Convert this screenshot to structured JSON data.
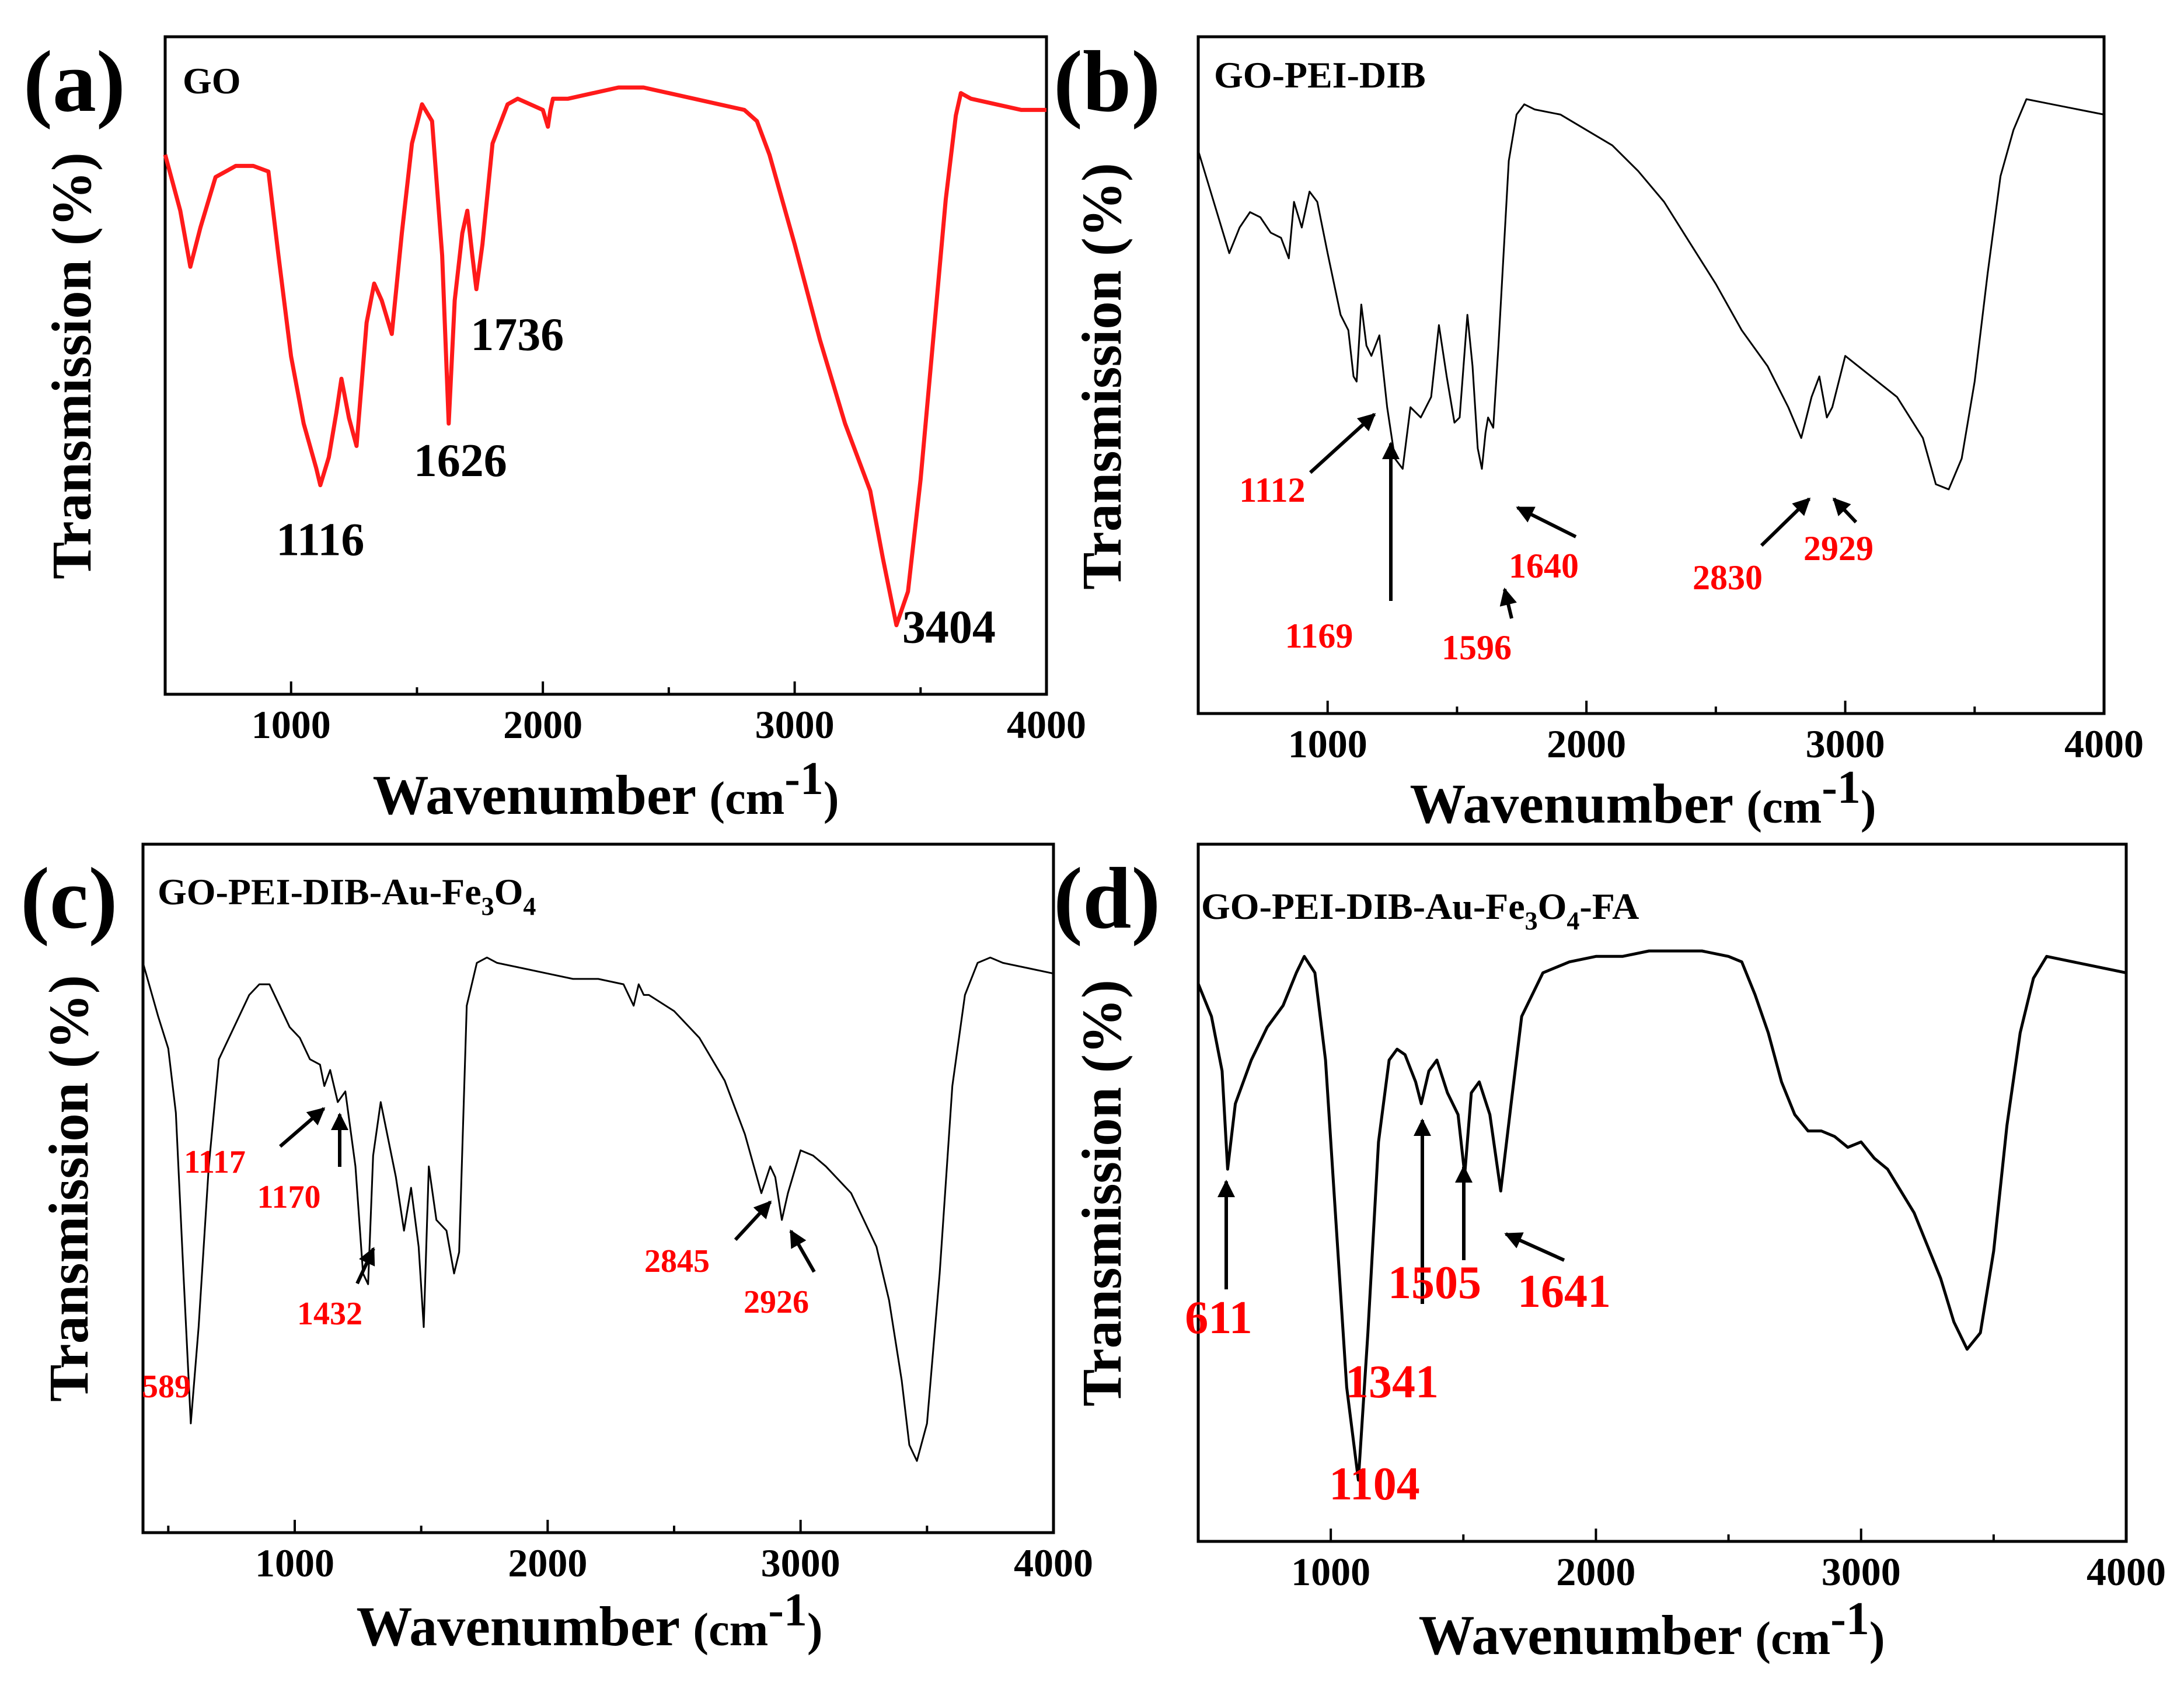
{
  "chart_data": [
    {
      "type": "line",
      "panel_label": "(a)",
      "title": "GO",
      "xlabel": "Wavenumber",
      "xunit": "(cm",
      "xunit_sup": "-1",
      "xunit_close": ")",
      "ylabel": "Transmission (%)",
      "xlim": [
        500,
        4000
      ],
      "ylim": [
        0,
        100
      ],
      "xticks": [
        1000,
        2000,
        3000,
        4000
      ],
      "line_color": "#ff1a1a",
      "line_width": 7,
      "annotation_color": "#000000",
      "annotation_size": 80,
      "series": [
        {
          "name": "GO",
          "x": [
            500,
            560,
            600,
            640,
            700,
            780,
            850,
            910,
            950,
            1000,
            1050,
            1100,
            1116,
            1150,
            1180,
            1200,
            1230,
            1260,
            1300,
            1330,
            1360,
            1400,
            1440,
            1480,
            1520,
            1560,
            1600,
            1626,
            1650,
            1680,
            1700,
            1720,
            1736,
            1760,
            1800,
            1860,
            1900,
            1950,
            2000,
            2020,
            2030,
            2040,
            2100,
            2200,
            2300,
            2400,
            2500,
            2600,
            2700,
            2800,
            2850,
            2900,
            3000,
            3100,
            3200,
            3300,
            3350,
            3404,
            3450,
            3500,
            3550,
            3600,
            3640,
            3660,
            3700,
            3800,
            3900,
            4000
          ],
          "y": [
            88,
            78,
            68,
            75,
            84,
            86,
            86,
            85,
            70,
            52,
            40,
            32,
            29,
            34,
            42,
            48,
            41,
            36,
            58,
            65,
            62,
            56,
            74,
            90,
            97,
            94,
            70,
            40,
            62,
            74,
            78,
            70,
            64,
            72,
            90,
            97,
            98,
            97,
            96,
            93,
            96,
            98,
            98,
            99,
            100,
            100,
            99,
            98,
            97,
            96,
            94,
            88,
            72,
            55,
            40,
            28,
            16,
            4,
            10,
            30,
            55,
            80,
            95,
            99,
            98,
            97,
            96,
            96
          ]
        }
      ],
      "annotations": [
        {
          "text": "1116",
          "x": 1116
        },
        {
          "text": "1626",
          "x": 1626
        },
        {
          "text": "1736",
          "x": 1736
        },
        {
          "text": "3404",
          "x": 3404
        }
      ]
    },
    {
      "type": "line",
      "panel_label": "(b)",
      "title": "GO-PEI-DIB",
      "xlabel": "Wavenumber",
      "xunit": "(cm",
      "xunit_sup": "-1",
      "xunit_close": ")",
      "ylabel": "Transmission (%)",
      "xlim": [
        500,
        4000
      ],
      "ylim": [
        0,
        100
      ],
      "xticks": [
        1000,
        2000,
        3000,
        4000
      ],
      "line_color": "#000000",
      "line_width": 3,
      "annotation_color": "#ff0000",
      "annotation_size": 60,
      "series": [
        {
          "name": "GO-PEI-DIB",
          "x": [
            500,
            560,
            620,
            660,
            700,
            740,
            780,
            820,
            850,
            870,
            900,
            930,
            960,
            1000,
            1050,
            1080,
            1100,
            1112,
            1130,
            1150,
            1169,
            1200,
            1230,
            1260,
            1290,
            1320,
            1360,
            1400,
            1430,
            1460,
            1490,
            1510,
            1540,
            1560,
            1580,
            1596,
            1610,
            1620,
            1640,
            1660,
            1700,
            1730,
            1760,
            1800,
            1900,
            2000,
            2100,
            2200,
            2300,
            2400,
            2500,
            2600,
            2700,
            2780,
            2830,
            2870,
            2900,
            2929,
            2950,
            3000,
            3050,
            3100,
            3200,
            3300,
            3350,
            3400,
            3450,
            3500,
            3550,
            3600,
            3650,
            3700,
            3800,
            3900,
            4000
          ],
          "y": [
            90,
            80,
            70,
            75,
            78,
            77,
            74,
            73,
            69,
            80,
            75,
            82,
            80,
            70,
            58,
            55,
            46,
            45,
            60,
            52,
            50,
            54,
            40,
            30,
            28,
            40,
            38,
            42,
            56,
            46,
            37,
            38,
            58,
            48,
            32,
            28,
            35,
            38,
            36,
            52,
            88,
            97,
            99,
            98,
            97,
            94,
            91,
            86,
            80,
            72,
            64,
            55,
            48,
            40,
            34,
            42,
            46,
            38,
            40,
            50,
            48,
            46,
            42,
            34,
            25,
            24,
            30,
            45,
            66,
            85,
            94,
            100,
            99,
            98,
            97
          ]
        }
      ],
      "annotations": [
        {
          "text": "1112",
          "x": 1112
        },
        {
          "text": "1169",
          "x": 1169
        },
        {
          "text": "1596",
          "x": 1596
        },
        {
          "text": "1640",
          "x": 1640
        },
        {
          "text": "2830",
          "x": 2830
        },
        {
          "text": "2929",
          "x": 2929
        }
      ]
    },
    {
      "type": "line",
      "panel_label": "(c)",
      "title": "GO-PEI-DIB-Au-Fe",
      "title_sub1": "3",
      "title_mid": "O",
      "title_sub2": "4",
      "xlabel": "Wavenumber",
      "xunit": "(cm",
      "xunit_sup": "-1",
      "xunit_close": ")",
      "ylabel": "Transmission (%)",
      "xlim": [
        400,
        4000
      ],
      "ylim": [
        0,
        100
      ],
      "xticks": [
        1000,
        2000,
        3000,
        4000
      ],
      "line_color": "#000000",
      "line_width": 3,
      "annotation_color": "#ff0000",
      "annotation_size": 56,
      "series": [
        {
          "name": "GO-PEI-DIB-Au-Fe3O4",
          "x": [
            400,
            460,
            500,
            530,
            560,
            589,
            620,
            660,
            700,
            760,
            820,
            860,
            900,
            940,
            980,
            1020,
            1060,
            1100,
            1117,
            1140,
            1170,
            1200,
            1240,
            1270,
            1290,
            1310,
            1340,
            1370,
            1400,
            1432,
            1460,
            1490,
            1510,
            1530,
            1560,
            1600,
            1630,
            1650,
            1680,
            1720,
            1760,
            1800,
            1900,
            2000,
            2100,
            2200,
            2300,
            2340,
            2360,
            2380,
            2400,
            2500,
            2600,
            2700,
            2780,
            2845,
            2880,
            2900,
            2926,
            2950,
            3000,
            3050,
            3100,
            3200,
            3300,
            3350,
            3400,
            3430,
            3460,
            3500,
            3550,
            3600,
            3650,
            3700,
            3750,
            3800,
            3900,
            4000
          ],
          "y": [
            98,
            88,
            82,
            70,
            40,
            12,
            30,
            60,
            80,
            86,
            92,
            94,
            94,
            90,
            86,
            84,
            80,
            79,
            75,
            78,
            72,
            74,
            60,
            40,
            38,
            62,
            72,
            65,
            58,
            48,
            56,
            45,
            30,
            60,
            50,
            48,
            40,
            44,
            90,
            98,
            99,
            98,
            97,
            96,
            95,
            95,
            94,
            90,
            94,
            92,
            92,
            89,
            84,
            76,
            66,
            55,
            60,
            58,
            50,
            55,
            63,
            62,
            60,
            55,
            45,
            35,
            20,
            8,
            5,
            12,
            40,
            75,
            92,
            98,
            99,
            98,
            97,
            96
          ]
        }
      ],
      "annotations": [
        {
          "text": "589",
          "x": 589
        },
        {
          "text": "1117",
          "x": 1117
        },
        {
          "text": "1170",
          "x": 1170
        },
        {
          "text": "1432",
          "x": 1432
        },
        {
          "text": "2845",
          "x": 2845
        },
        {
          "text": "2926",
          "x": 2926
        }
      ]
    },
    {
      "type": "line",
      "panel_label": "(d)",
      "title": "GO-PEI-DIB-Au-Fe",
      "title_sub1": "3",
      "title_mid": "O",
      "title_sub2": "4",
      "title_end": "-FA",
      "xlabel": "Wavenumber",
      "xunit": "(cm",
      "xunit_sup": "-1",
      "xunit_close": ")",
      "ylabel": "Transmission (%)",
      "xlim": [
        500,
        4000
      ],
      "ylim": [
        0,
        100
      ],
      "xticks": [
        1000,
        2000,
        3000,
        4000
      ],
      "line_color": "#000000",
      "line_width": 5,
      "annotation_color": "#ff0000",
      "annotation_size": 80,
      "series": [
        {
          "name": "GO-PEI-DIB-Au-Fe3O4-FA",
          "x": [
            500,
            550,
            590,
            611,
            640,
            700,
            760,
            820,
            870,
            900,
            940,
            980,
            1020,
            1060,
            1104,
            1140,
            1180,
            1220,
            1250,
            1280,
            1320,
            1341,
            1370,
            1400,
            1440,
            1480,
            1505,
            1530,
            1560,
            1600,
            1641,
            1680,
            1720,
            1800,
            1900,
            2000,
            2100,
            2200,
            2300,
            2400,
            2500,
            2550,
            2600,
            2650,
            2700,
            2750,
            2800,
            2850,
            2900,
            2950,
            3000,
            3050,
            3100,
            3200,
            3300,
            3350,
            3400,
            3450,
            3500,
            3550,
            3600,
            3650,
            3700,
            3800,
            3900,
            4000
          ],
          "y": [
            94,
            88,
            78,
            60,
            72,
            80,
            86,
            90,
            96,
            99,
            96,
            80,
            50,
            20,
            3,
            30,
            65,
            80,
            82,
            81,
            76,
            72,
            78,
            80,
            74,
            70,
            59,
            74,
            76,
            70,
            56,
            72,
            88,
            96,
            98,
            99,
            99,
            100,
            100,
            100,
            99,
            98,
            92,
            85,
            76,
            70,
            67,
            67,
            66,
            64,
            65,
            62,
            60,
            52,
            40,
            32,
            27,
            30,
            45,
            68,
            85,
            95,
            99,
            98,
            97,
            96
          ]
        }
      ],
      "annotations": [
        {
          "text": "611",
          "x": 611
        },
        {
          "text": "1104",
          "x": 1104
        },
        {
          "text": "1341",
          "x": 1341
        },
        {
          "text": "1505",
          "x": 1505
        },
        {
          "text": "1641",
          "x": 1641
        }
      ]
    }
  ]
}
